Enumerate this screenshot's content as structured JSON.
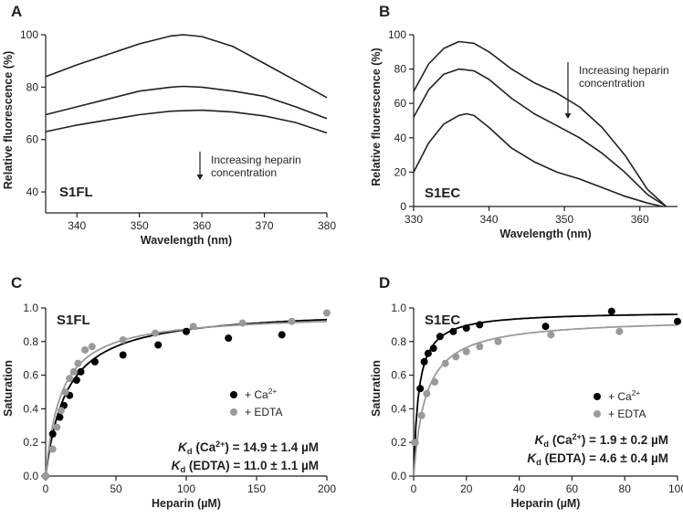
{
  "chart_data": [
    {
      "panel": "A",
      "type": "line",
      "inset_label": "S1FL",
      "xlabel": "Wavelength (nm)",
      "ylabel": "Relative fluorescence (%)",
      "xlim": [
        335,
        380
      ],
      "ylim": [
        32,
        100
      ],
      "xticks": [
        340,
        350,
        360,
        370,
        380
      ],
      "yticks": [
        40,
        60,
        80,
        100
      ],
      "annotation": [
        "Increasing heparin",
        "concentration"
      ],
      "series": [
        {
          "name": "curve-1",
          "x": [
            335,
            340,
            345,
            350,
            355,
            357,
            360,
            365,
            370,
            375,
            380
          ],
          "y": [
            84,
            88.5,
            92.5,
            96.5,
            99.5,
            100,
            99.3,
            95.5,
            89,
            82.5,
            76
          ]
        },
        {
          "name": "curve-2",
          "x": [
            335,
            340,
            345,
            350,
            355,
            357,
            360,
            365,
            370,
            375,
            380
          ],
          "y": [
            69.5,
            72.5,
            75.5,
            78.5,
            80,
            80.3,
            80,
            78.5,
            76.5,
            72.5,
            68
          ]
        },
        {
          "name": "curve-3",
          "x": [
            335,
            340,
            345,
            350,
            355,
            357,
            360,
            365,
            370,
            375,
            380
          ],
          "y": [
            63,
            65.5,
            67.5,
            69.5,
            70.8,
            71,
            71.2,
            70.5,
            69,
            66.5,
            62.5
          ]
        }
      ]
    },
    {
      "panel": "B",
      "type": "line",
      "inset_label": "S1EC",
      "xlabel": "Wavelength (nm)",
      "ylabel": "Relative fluorescence (%)",
      "xlim": [
        330,
        365
      ],
      "ylim": [
        0,
        100
      ],
      "xticks": [
        330,
        340,
        350,
        360
      ],
      "yticks": [
        0,
        20,
        40,
        60,
        80,
        100
      ],
      "annotation": [
        "Increasing heparin",
        "concentration"
      ],
      "series": [
        {
          "name": "curve-1",
          "x": [
            330,
            332,
            334,
            336,
            338,
            340,
            343,
            346,
            349,
            352,
            355,
            358,
            361,
            363.5
          ],
          "y": [
            67,
            83,
            92,
            96,
            95,
            90,
            80,
            72,
            66,
            58,
            46,
            30,
            10,
            0
          ]
        },
        {
          "name": "curve-2",
          "x": [
            330,
            332,
            334,
            336,
            338,
            340,
            343,
            346,
            349,
            352,
            355,
            358,
            361,
            363.5
          ],
          "y": [
            52,
            68,
            77,
            80,
            79,
            74,
            63,
            54,
            47,
            40,
            31,
            20,
            7,
            0
          ]
        },
        {
          "name": "curve-3",
          "x": [
            330,
            332,
            334,
            336,
            337,
            338,
            340,
            343,
            346,
            349,
            352,
            355,
            358,
            361,
            363
          ],
          "y": [
            20,
            37,
            48,
            53,
            54,
            53,
            46,
            34,
            26,
            20,
            16,
            11,
            6,
            2,
            0
          ]
        }
      ]
    },
    {
      "panel": "C",
      "type": "scatter",
      "inset_label": "S1FL",
      "xlabel": "Heparin (µM)",
      "ylabel": "Saturation",
      "xlim": [
        0,
        200
      ],
      "ylim": [
        0,
        1.0
      ],
      "xticks": [
        0,
        50,
        100,
        150,
        200
      ],
      "yticks": [
        0.0,
        0.2,
        0.4,
        0.6,
        0.8,
        1.0
      ],
      "legend": {
        "ca": "+ Ca²⁺",
        "edta": "+ EDTA"
      },
      "kd": {
        "ca": "Kd (Ca²⁺) = 14.9 ± 1.4 µM",
        "edta": "Kd (EDTA) = 11.0 ± 1.1 µM"
      },
      "series": [
        {
          "name": "+ Ca2+",
          "color": "#000000",
          "fit_kd": 14.9,
          "fit_bmax": 1.0,
          "x": [
            0,
            5,
            10,
            13,
            17,
            22,
            25,
            35,
            55,
            80,
            100,
            130,
            168
          ],
          "y": [
            0,
            0.25,
            0.35,
            0.42,
            0.48,
            0.57,
            0.62,
            0.68,
            0.72,
            0.78,
            0.86,
            0.82,
            0.84
          ]
        },
        {
          "name": "+ EDTA",
          "color": "#9a9a9a",
          "fit_kd": 11.0,
          "fit_bmax": 0.97,
          "x": [
            0,
            5,
            8,
            11,
            14,
            17,
            20,
            23,
            28,
            33,
            55,
            78,
            105,
            140,
            175,
            200
          ],
          "y": [
            0,
            0.16,
            0.29,
            0.39,
            0.5,
            0.58,
            0.62,
            0.67,
            0.75,
            0.77,
            0.81,
            0.85,
            0.89,
            0.91,
            0.92,
            0.97
          ]
        }
      ]
    },
    {
      "panel": "D",
      "type": "scatter",
      "inset_label": "S1EC",
      "xlabel": "Heparin (µM)",
      "ylabel": "Saturation",
      "xlim": [
        0,
        100
      ],
      "ylim": [
        0,
        1.0
      ],
      "xticks": [
        0,
        20,
        40,
        60,
        80,
        100
      ],
      "yticks": [
        0.0,
        0.2,
        0.4,
        0.6,
        0.8,
        1.0
      ],
      "legend": {
        "ca": "+ Ca²⁺",
        "edta": "+ EDTA"
      },
      "kd": {
        "ca": "Kd (Ca²⁺) = 1.9 ± 0.2 µM",
        "edta": "Kd (EDTA) = 4.6 ± 0.4 µM"
      },
      "series": [
        {
          "name": "+ Ca2+",
          "color": "#000000",
          "fit_kd": 1.9,
          "fit_bmax": 0.98,
          "x": [
            0.5,
            2.5,
            4,
            5.5,
            7.5,
            10,
            15,
            20,
            25,
            50,
            75,
            100
          ],
          "y": [
            0.2,
            0.52,
            0.68,
            0.73,
            0.76,
            0.83,
            0.86,
            0.88,
            0.9,
            0.89,
            0.98,
            0.92
          ]
        },
        {
          "name": "+ EDTA",
          "color": "#9a9a9a",
          "fit_kd": 4.6,
          "fit_bmax": 0.94,
          "x": [
            0.5,
            3,
            5,
            8,
            12,
            16,
            20,
            25,
            32,
            52,
            78
          ],
          "y": [
            0.2,
            0.36,
            0.49,
            0.56,
            0.67,
            0.71,
            0.74,
            0.77,
            0.8,
            0.84,
            0.86
          ]
        }
      ]
    }
  ]
}
